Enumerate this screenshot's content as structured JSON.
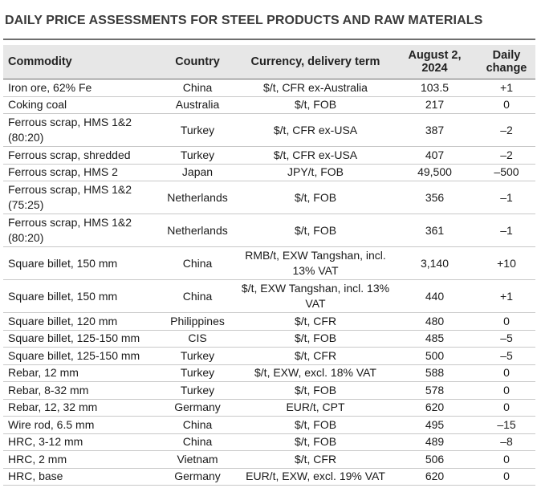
{
  "title": "DAILY PRICE ASSESSMENTS FOR STEEL PRODUCTS AND RAW MATERIALS",
  "headers": {
    "commodity": "Commodity",
    "country": "Country",
    "currency": "Currency, delivery term",
    "date_line1": "August 2,",
    "date_line2": "2024",
    "change_line1": "Daily",
    "change_line2": "change"
  },
  "rows": [
    {
      "commodity": "Iron ore, 62% Fe",
      "country": "China",
      "currency": "$/t, CFR ex-Australia",
      "price": "103.5",
      "change": "+1"
    },
    {
      "commodity": "Coking coal",
      "country": "Australia",
      "currency": "$/t, FOB",
      "price": "217",
      "change": "0"
    },
    {
      "commodity": "Ferrous scrap, HMS 1&2 (80:20)",
      "country": "Turkey",
      "currency": "$/t, CFR ex-USA",
      "price": "387",
      "change": "–2"
    },
    {
      "commodity": "Ferrous scrap, shredded",
      "country": "Turkey",
      "currency": "$/t, CFR ex-USA",
      "price": "407",
      "change": "–2"
    },
    {
      "commodity": "Ferrous scrap, HMS 2",
      "country": "Japan",
      "currency": "JPY/t, FOB",
      "price": "49,500",
      "change": "–500"
    },
    {
      "commodity": "Ferrous scrap, HMS 1&2 (75:25)",
      "country": "Netherlands",
      "currency": "$/t, FOB",
      "price": "356",
      "change": "–1"
    },
    {
      "commodity": "Ferrous scrap, HMS 1&2 (80:20)",
      "country": "Netherlands",
      "currency": "$/t, FOB",
      "price": "361",
      "change": "–1"
    },
    {
      "commodity": "Square billet, 150 mm",
      "country": "China",
      "currency": "RMB/t, EXW Tangshan, incl. 13% VAT",
      "price": "3,140",
      "change": "+10"
    },
    {
      "commodity": "Square billet, 150 mm",
      "country": "China",
      "currency": "$/t, EXW Tangshan, incl. 13% VAT",
      "price": "440",
      "change": "+1"
    },
    {
      "commodity": "Square billet, 120 mm",
      "country": "Philippines",
      "currency": "$/t, CFR",
      "price": "480",
      "change": "0"
    },
    {
      "commodity": "Square billet, 125-150 mm",
      "country": "CIS",
      "currency": "$/t, FOB",
      "price": "485",
      "change": "–5"
    },
    {
      "commodity": "Square billet, 125-150 mm",
      "country": "Turkey",
      "currency": "$/t, CFR",
      "price": "500",
      "change": "–5"
    },
    {
      "commodity": "Rebar, 12 mm",
      "country": "Turkey",
      "currency": "$/t, EXW, excl. 18% VAT",
      "price": "588",
      "change": "0"
    },
    {
      "commodity": "Rebar, 8-32 mm",
      "country": "Turkey",
      "currency": "$/t, FOB",
      "price": "578",
      "change": "0"
    },
    {
      "commodity": "Rebar, 12, 32 mm",
      "country": "Germany",
      "currency": "EUR/t, CPT",
      "price": "620",
      "change": "0"
    },
    {
      "commodity": "Wire rod, 6.5 mm",
      "country": "China",
      "currency": "$/t, FOB",
      "price": "495",
      "change": "–15"
    },
    {
      "commodity": "HRC, 3-12 mm",
      "country": "China",
      "currency": "$/t, FOB",
      "price": "489",
      "change": "–8"
    },
    {
      "commodity": "HRC, 2 mm",
      "country": "Vietnam",
      "currency": "$/t, CFR",
      "price": "506",
      "change": "0"
    },
    {
      "commodity": "HRC, base",
      "country": "Germany",
      "currency": "EUR/t, EXW, excl. 19% VAT",
      "price": "620",
      "change": "0"
    }
  ]
}
